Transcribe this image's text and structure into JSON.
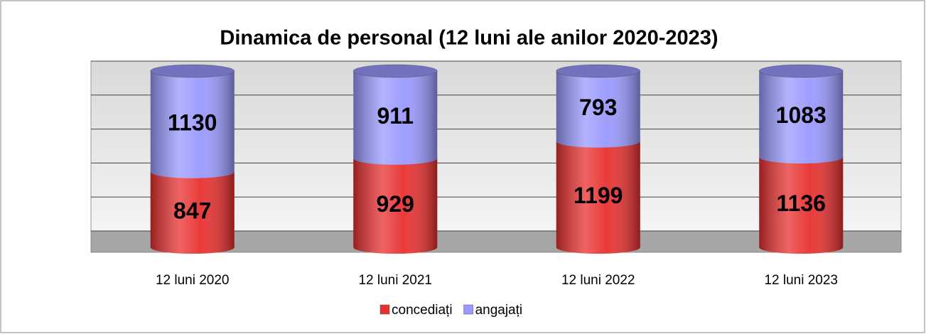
{
  "chart_data": {
    "type": "bar",
    "stacking": "percent",
    "title": "Dinamica de personal (12 luni ale anilor 2020-2023)",
    "categories": [
      "12 luni 2020",
      "12 luni 2021",
      "12 luni 2022",
      "12 luni 2023"
    ],
    "series": [
      {
        "name": "concediați",
        "color": "#e8302f",
        "values": [
          847,
          929,
          1199,
          1136
        ]
      },
      {
        "name": "angajați",
        "color": "#9999ff",
        "values": [
          1130,
          911,
          793,
          1083
        ]
      }
    ],
    "ylim": [
      0,
      100
    ],
    "yticks": [
      0,
      20,
      40,
      60,
      80,
      100
    ],
    "show_tick_labels": false,
    "grid": true,
    "legend": "bottom"
  }
}
